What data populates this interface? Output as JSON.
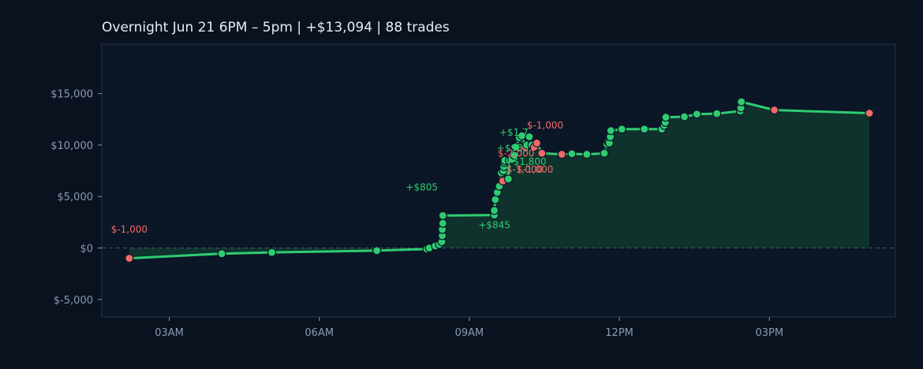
{
  "title": "Overnight  Jun 21 6PM – 5pm  |  +$13,094  |  88 trades",
  "colors": {
    "background": "#0a1220",
    "plot_bg": "#0b1626",
    "frame": "#25344a",
    "line": "#2ecc71",
    "fill": "#10352f",
    "win_marker": "#2ecc71",
    "loss_marker": "#f06a6a",
    "marker_edge": "#0b1626",
    "zero_line": "#44566c",
    "tick_text": "#8b9ab0"
  },
  "chart_data": {
    "type": "line",
    "title": "Overnight  Jun 21 6PM – 5pm  |  +$13,094  |  88 trades",
    "xlabel": "",
    "ylabel": "",
    "x_tick_labels": [
      {
        "x": 3,
        "label": "03AM"
      },
      {
        "x": 6,
        "label": "06AM"
      },
      {
        "x": 9,
        "label": "09AM"
      },
      {
        "x": 12,
        "label": "12PM"
      },
      {
        "x": 15,
        "label": "03PM"
      }
    ],
    "y_ticks": [
      -5000,
      0,
      5000,
      10000,
      15000
    ],
    "y_tick_labels": [
      "$-5,000",
      "$0",
      "$5,000",
      "$10,000",
      "$15,000"
    ],
    "xlim": [
      1.65,
      17.52
    ],
    "ylim": [
      -6700,
      19800
    ],
    "zero_line": true,
    "grid": false,
    "series": [
      {
        "name": "",
        "points": [
          {
            "x": 2.2,
            "y": -1000,
            "result": "loss"
          },
          {
            "x": 4.05,
            "y": -550,
            "result": "win"
          },
          {
            "x": 5.05,
            "y": -430,
            "result": "win"
          },
          {
            "x": 7.15,
            "y": -260,
            "result": "win"
          },
          {
            "x": 8.15,
            "y": -100,
            "result": "win"
          },
          {
            "x": 8.2,
            "y": 0,
            "result": "win"
          },
          {
            "x": 8.32,
            "y": 200,
            "result": "win"
          },
          {
            "x": 8.4,
            "y": 350,
            "result": "win"
          },
          {
            "x": 8.45,
            "y": 600,
            "result": "win"
          },
          {
            "x": 8.46,
            "y": 1200,
            "result": "win"
          },
          {
            "x": 8.46,
            "y": 1800,
            "result": "win"
          },
          {
            "x": 8.47,
            "y": 2400,
            "result": "win"
          },
          {
            "x": 8.47,
            "y": 3150,
            "result": "win"
          },
          {
            "x": 9.5,
            "y": 3200,
            "result": "win"
          },
          {
            "x": 9.5,
            "y": 3650,
            "result": "win"
          },
          {
            "x": 9.52,
            "y": 4700,
            "result": "win"
          },
          {
            "x": 9.56,
            "y": 5400,
            "result": "win"
          },
          {
            "x": 9.6,
            "y": 6000,
            "result": "win"
          },
          {
            "x": 9.64,
            "y": 7300,
            "result": "win"
          },
          {
            "x": 9.67,
            "y": 6500,
            "result": "loss"
          },
          {
            "x": 9.68,
            "y": 7500,
            "result": "win"
          },
          {
            "x": 9.69,
            "y": 7900,
            "result": "win"
          },
          {
            "x": 9.7,
            "y": 8300,
            "result": "win"
          },
          {
            "x": 9.71,
            "y": 8500,
            "result": "win"
          },
          {
            "x": 9.78,
            "y": 6700,
            "result": "win"
          },
          {
            "x": 9.8,
            "y": 8500,
            "result": "win"
          },
          {
            "x": 9.85,
            "y": 8600,
            "result": "win"
          },
          {
            "x": 9.9,
            "y": 9000,
            "result": "win"
          },
          {
            "x": 9.93,
            "y": 9800,
            "result": "win"
          },
          {
            "x": 10.0,
            "y": 10700,
            "result": "win"
          },
          {
            "x": 10.05,
            "y": 10900,
            "result": "win"
          },
          {
            "x": 10.12,
            "y": 9800,
            "result": "loss"
          },
          {
            "x": 10.15,
            "y": 10000,
            "result": "win"
          },
          {
            "x": 10.2,
            "y": 10800,
            "result": "win"
          },
          {
            "x": 10.25,
            "y": 10000,
            "result": "win"
          },
          {
            "x": 10.3,
            "y": 9800,
            "result": "loss"
          },
          {
            "x": 10.35,
            "y": 10200,
            "result": "loss"
          },
          {
            "x": 10.45,
            "y": 9200,
            "result": "loss"
          },
          {
            "x": 10.85,
            "y": 9100,
            "result": "loss"
          },
          {
            "x": 11.05,
            "y": 9150,
            "result": "win"
          },
          {
            "x": 11.35,
            "y": 9100,
            "result": "win"
          },
          {
            "x": 11.7,
            "y": 9200,
            "result": "win"
          },
          {
            "x": 11.75,
            "y": 10100,
            "result": "win"
          },
          {
            "x": 11.78,
            "y": 10300,
            "result": "win"
          },
          {
            "x": 11.8,
            "y": 10200,
            "result": "win"
          },
          {
            "x": 11.82,
            "y": 10800,
            "result": "win"
          },
          {
            "x": 11.83,
            "y": 11400,
            "result": "win"
          },
          {
            "x": 12.05,
            "y": 11550,
            "result": "win"
          },
          {
            "x": 12.5,
            "y": 11550,
            "result": "win"
          },
          {
            "x": 12.85,
            "y": 11550,
            "result": "win"
          },
          {
            "x": 12.9,
            "y": 11900,
            "result": "win"
          },
          {
            "x": 12.92,
            "y": 12200,
            "result": "win"
          },
          {
            "x": 12.93,
            "y": 12700,
            "result": "win"
          },
          {
            "x": 13.3,
            "y": 12750,
            "result": "win"
          },
          {
            "x": 13.55,
            "y": 13000,
            "result": "win"
          },
          {
            "x": 13.95,
            "y": 13050,
            "result": "win"
          },
          {
            "x": 14.42,
            "y": 13300,
            "result": "win"
          },
          {
            "x": 14.43,
            "y": 13600,
            "result": "win"
          },
          {
            "x": 14.44,
            "y": 14200,
            "result": "win"
          },
          {
            "x": 15.1,
            "y": 13400,
            "result": "loss"
          },
          {
            "x": 17.0,
            "y": 13094,
            "result": "loss"
          }
        ]
      }
    ],
    "annotations": [
      {
        "text": "$-1,000",
        "x": 2.2,
        "y": 1500,
        "result": "loss",
        "align": "middle"
      },
      {
        "text": "+$805",
        "x": 8.05,
        "y": 5600,
        "result": "win",
        "align": "middle"
      },
      {
        "text": "+$845",
        "x": 9.5,
        "y": 1900,
        "result": "win",
        "align": "middle"
      },
      {
        "text": "+$1,7",
        "x": 9.6,
        "y": 10900,
        "result": "win",
        "align": "start"
      },
      {
        "text": "$-1,000",
        "x": 10.15,
        "y": 11600,
        "result": "loss",
        "align": "start"
      },
      {
        "text": "+$985",
        "x": 9.55,
        "y": 9400,
        "result": "win",
        "align": "start"
      },
      {
        "text": "$-2,000",
        "x": 9.57,
        "y": 8900,
        "result": "loss",
        "align": "start"
      },
      {
        "text": "+$1,800",
        "x": 9.72,
        "y": 8100,
        "result": "win",
        "align": "start"
      },
      {
        "text": "$-1,000",
        "x": 9.74,
        "y": 7300,
        "result": "loss",
        "align": "start"
      },
      {
        "text": "$-1,000",
        "x": 9.95,
        "y": 7300,
        "result": "loss",
        "align": "start"
      }
    ]
  }
}
